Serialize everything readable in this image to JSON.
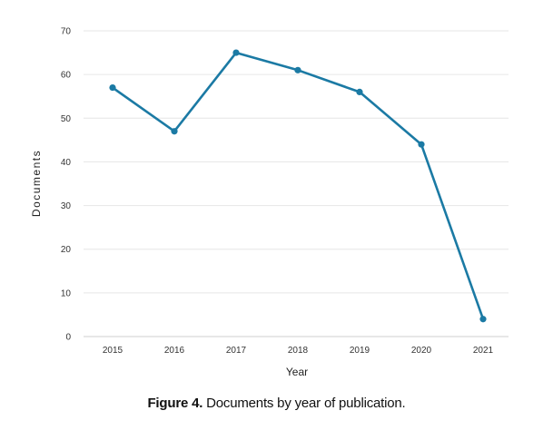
{
  "chart_data": {
    "type": "line",
    "x": [
      "2015",
      "2016",
      "2017",
      "2018",
      "2019",
      "2020",
      "2021"
    ],
    "series": [
      {
        "values": [
          57,
          47,
          65,
          61,
          56,
          44,
          4
        ],
        "color": "#1b7aa4"
      }
    ],
    "xlabel": "Year",
    "ylabel": "Documents",
    "ylim": [
      0,
      70
    ],
    "yticks": [
      "0",
      "10",
      "20",
      "30",
      "40",
      "50",
      "60",
      "70"
    ],
    "grid": true,
    "marker": "circle"
  },
  "caption": {
    "label": "Figure 4.",
    "text": " Documents by year of publication."
  }
}
